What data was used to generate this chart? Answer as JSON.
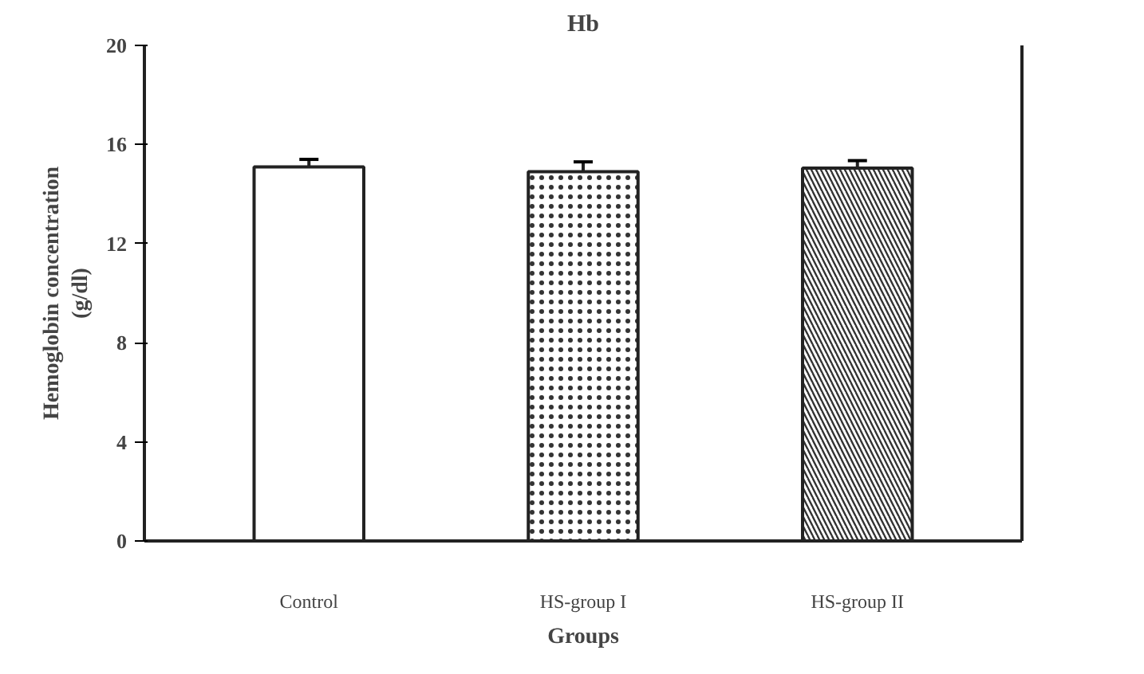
{
  "chart_data": {
    "type": "bar",
    "title": "Hb",
    "xlabel": "Groups",
    "ylabel": "Hemoglobin concentration\n(g/dl)",
    "categories": [
      "Control",
      "HS-group I",
      "HS-group II"
    ],
    "values": [
      15.1,
      14.9,
      15.05
    ],
    "errors": [
      0.3,
      0.4,
      0.3
    ],
    "colors": [
      "#ffffff",
      "#ffffff",
      "#ffffff"
    ],
    "ylim": [
      0,
      20
    ],
    "yticks": [
      0,
      4,
      8,
      12,
      16,
      20
    ],
    "grid": false
  }
}
